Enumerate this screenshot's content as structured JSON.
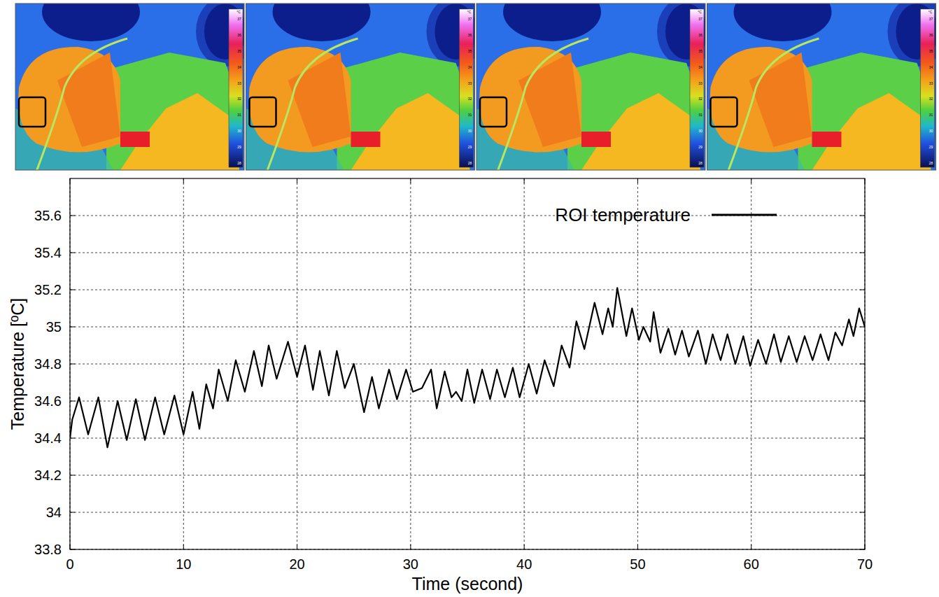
{
  "chart_data": {
    "type": "line",
    "x_label": "Time (second)",
    "y_label": "Temperature [ºC]",
    "x": [
      0,
      0.2,
      0.8,
      1.6,
      2.5,
      3.3,
      4.2,
      5.0,
      5.8,
      6.6,
      7.5,
      8.3,
      9.2,
      10.0,
      10.8,
      11.4,
      12.0,
      12.6,
      13.1,
      13.9,
      14.6,
      15.4,
      16.2,
      16.9,
      17.5,
      18.2,
      19.2,
      20.0,
      20.7,
      21.4,
      22.0,
      22.8,
      23.5,
      24.2,
      25.0,
      25.9,
      26.6,
      27.2,
      28.1,
      28.8,
      29.6,
      30.2,
      31.0,
      31.8,
      32.3,
      33.0,
      33.6,
      34.0,
      34.5,
      35.0,
      35.6,
      36.3,
      37.0,
      37.6,
      38.3,
      39.0,
      39.6,
      40.4,
      41.1,
      41.8,
      42.6,
      43.3,
      44.0,
      44.6,
      45.3,
      46.2,
      46.9,
      47.4,
      47.8,
      48.2,
      49.0,
      49.5,
      50.1,
      50.5,
      51.1,
      51.4,
      52.0,
      52.7,
      53.3,
      53.9,
      54.5,
      55.3,
      56.0,
      56.6,
      57.3,
      57.9,
      58.6,
      59.3,
      59.9,
      60.6,
      61.3,
      62.0,
      62.6,
      63.3,
      64.0,
      64.7,
      65.4,
      66.1,
      66.8,
      67.4,
      68.0,
      68.6,
      69.0,
      69.5,
      70.0
    ],
    "series": [
      {
        "name": "ROI temperature",
        "color": "#000000",
        "line_style": "solid",
        "values": [
          34.4,
          34.5,
          34.62,
          34.42,
          34.62,
          34.35,
          34.6,
          34.39,
          34.61,
          34.39,
          34.62,
          34.42,
          34.63,
          34.42,
          34.65,
          34.45,
          34.69,
          34.56,
          34.77,
          34.6,
          34.82,
          34.65,
          34.87,
          34.68,
          34.9,
          34.72,
          34.92,
          34.73,
          34.9,
          34.66,
          34.87,
          34.63,
          34.87,
          34.67,
          34.8,
          34.54,
          34.73,
          34.56,
          34.77,
          34.61,
          34.77,
          34.65,
          34.67,
          34.77,
          34.56,
          34.76,
          34.62,
          34.65,
          34.6,
          34.77,
          34.59,
          34.77,
          34.61,
          34.77,
          34.62,
          34.78,
          34.62,
          34.8,
          34.64,
          34.82,
          34.68,
          34.9,
          34.78,
          35.03,
          34.88,
          35.13,
          34.96,
          35.1,
          35.0,
          35.21,
          34.95,
          35.1,
          34.93,
          35.0,
          34.92,
          35.08,
          34.86,
          34.99,
          34.85,
          34.98,
          34.84,
          34.98,
          34.8,
          34.96,
          34.82,
          34.96,
          34.8,
          34.95,
          34.79,
          34.93,
          34.8,
          34.96,
          34.81,
          34.95,
          34.81,
          34.95,
          34.82,
          34.96,
          34.82,
          34.97,
          34.9,
          35.04,
          34.95,
          35.1,
          35.0
        ]
      }
    ],
    "xlim": [
      0,
      70
    ],
    "xticks": [
      0,
      10,
      20,
      30,
      40,
      50,
      60,
      70
    ],
    "ylim": [
      33.8,
      35.8
    ],
    "yticks": [
      33.8,
      34,
      34.2,
      34.4,
      34.6,
      34.8,
      35,
      35.2,
      35.4,
      35.6
    ],
    "grid": true,
    "legend": "top-right",
    "image_colorbar": {
      "unit": "°C",
      "ticks": [
        37,
        36,
        35,
        34,
        33,
        32,
        31,
        30,
        29,
        28
      ]
    }
  }
}
